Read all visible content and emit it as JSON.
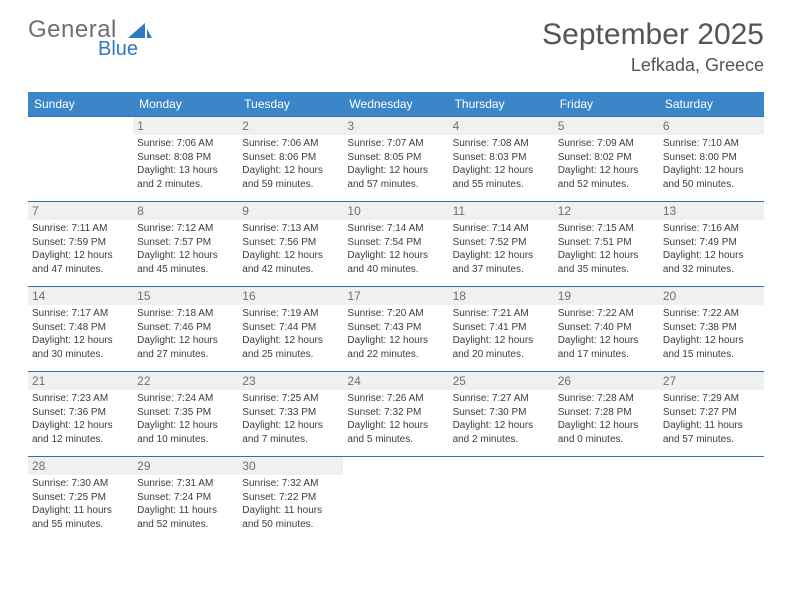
{
  "brand": {
    "word1": "General",
    "word2": "Blue"
  },
  "title": "September 2025",
  "location": "Lefkada, Greece",
  "colors": {
    "header_bg": "#3b86c8",
    "header_text": "#ffffff",
    "rule": "#3b6e9e",
    "daynum_bg": "#eef0f2",
    "daynum_text": "#707070",
    "body_text": "#3d3d3d",
    "title_text": "#555555",
    "brand_gray": "#6f6f6f",
    "brand_blue": "#2f79bd"
  },
  "day_headers": [
    "Sunday",
    "Monday",
    "Tuesday",
    "Wednesday",
    "Thursday",
    "Friday",
    "Saturday"
  ],
  "weeks": [
    [
      null,
      {
        "n": "1",
        "sr": "Sunrise: 7:06 AM",
        "ss": "Sunset: 8:08 PM",
        "dl": "Daylight: 13 hours and 2 minutes."
      },
      {
        "n": "2",
        "sr": "Sunrise: 7:06 AM",
        "ss": "Sunset: 8:06 PM",
        "dl": "Daylight: 12 hours and 59 minutes."
      },
      {
        "n": "3",
        "sr": "Sunrise: 7:07 AM",
        "ss": "Sunset: 8:05 PM",
        "dl": "Daylight: 12 hours and 57 minutes."
      },
      {
        "n": "4",
        "sr": "Sunrise: 7:08 AM",
        "ss": "Sunset: 8:03 PM",
        "dl": "Daylight: 12 hours and 55 minutes."
      },
      {
        "n": "5",
        "sr": "Sunrise: 7:09 AM",
        "ss": "Sunset: 8:02 PM",
        "dl": "Daylight: 12 hours and 52 minutes."
      },
      {
        "n": "6",
        "sr": "Sunrise: 7:10 AM",
        "ss": "Sunset: 8:00 PM",
        "dl": "Daylight: 12 hours and 50 minutes."
      }
    ],
    [
      {
        "n": "7",
        "sr": "Sunrise: 7:11 AM",
        "ss": "Sunset: 7:59 PM",
        "dl": "Daylight: 12 hours and 47 minutes."
      },
      {
        "n": "8",
        "sr": "Sunrise: 7:12 AM",
        "ss": "Sunset: 7:57 PM",
        "dl": "Daylight: 12 hours and 45 minutes."
      },
      {
        "n": "9",
        "sr": "Sunrise: 7:13 AM",
        "ss": "Sunset: 7:56 PM",
        "dl": "Daylight: 12 hours and 42 minutes."
      },
      {
        "n": "10",
        "sr": "Sunrise: 7:14 AM",
        "ss": "Sunset: 7:54 PM",
        "dl": "Daylight: 12 hours and 40 minutes."
      },
      {
        "n": "11",
        "sr": "Sunrise: 7:14 AM",
        "ss": "Sunset: 7:52 PM",
        "dl": "Daylight: 12 hours and 37 minutes."
      },
      {
        "n": "12",
        "sr": "Sunrise: 7:15 AM",
        "ss": "Sunset: 7:51 PM",
        "dl": "Daylight: 12 hours and 35 minutes."
      },
      {
        "n": "13",
        "sr": "Sunrise: 7:16 AM",
        "ss": "Sunset: 7:49 PM",
        "dl": "Daylight: 12 hours and 32 minutes."
      }
    ],
    [
      {
        "n": "14",
        "sr": "Sunrise: 7:17 AM",
        "ss": "Sunset: 7:48 PM",
        "dl": "Daylight: 12 hours and 30 minutes."
      },
      {
        "n": "15",
        "sr": "Sunrise: 7:18 AM",
        "ss": "Sunset: 7:46 PM",
        "dl": "Daylight: 12 hours and 27 minutes."
      },
      {
        "n": "16",
        "sr": "Sunrise: 7:19 AM",
        "ss": "Sunset: 7:44 PM",
        "dl": "Daylight: 12 hours and 25 minutes."
      },
      {
        "n": "17",
        "sr": "Sunrise: 7:20 AM",
        "ss": "Sunset: 7:43 PM",
        "dl": "Daylight: 12 hours and 22 minutes."
      },
      {
        "n": "18",
        "sr": "Sunrise: 7:21 AM",
        "ss": "Sunset: 7:41 PM",
        "dl": "Daylight: 12 hours and 20 minutes."
      },
      {
        "n": "19",
        "sr": "Sunrise: 7:22 AM",
        "ss": "Sunset: 7:40 PM",
        "dl": "Daylight: 12 hours and 17 minutes."
      },
      {
        "n": "20",
        "sr": "Sunrise: 7:22 AM",
        "ss": "Sunset: 7:38 PM",
        "dl": "Daylight: 12 hours and 15 minutes."
      }
    ],
    [
      {
        "n": "21",
        "sr": "Sunrise: 7:23 AM",
        "ss": "Sunset: 7:36 PM",
        "dl": "Daylight: 12 hours and 12 minutes."
      },
      {
        "n": "22",
        "sr": "Sunrise: 7:24 AM",
        "ss": "Sunset: 7:35 PM",
        "dl": "Daylight: 12 hours and 10 minutes."
      },
      {
        "n": "23",
        "sr": "Sunrise: 7:25 AM",
        "ss": "Sunset: 7:33 PM",
        "dl": "Daylight: 12 hours and 7 minutes."
      },
      {
        "n": "24",
        "sr": "Sunrise: 7:26 AM",
        "ss": "Sunset: 7:32 PM",
        "dl": "Daylight: 12 hours and 5 minutes."
      },
      {
        "n": "25",
        "sr": "Sunrise: 7:27 AM",
        "ss": "Sunset: 7:30 PM",
        "dl": "Daylight: 12 hours and 2 minutes."
      },
      {
        "n": "26",
        "sr": "Sunrise: 7:28 AM",
        "ss": "Sunset: 7:28 PM",
        "dl": "Daylight: 12 hours and 0 minutes."
      },
      {
        "n": "27",
        "sr": "Sunrise: 7:29 AM",
        "ss": "Sunset: 7:27 PM",
        "dl": "Daylight: 11 hours and 57 minutes."
      }
    ],
    [
      {
        "n": "28",
        "sr": "Sunrise: 7:30 AM",
        "ss": "Sunset: 7:25 PM",
        "dl": "Daylight: 11 hours and 55 minutes."
      },
      {
        "n": "29",
        "sr": "Sunrise: 7:31 AM",
        "ss": "Sunset: 7:24 PM",
        "dl": "Daylight: 11 hours and 52 minutes."
      },
      {
        "n": "30",
        "sr": "Sunrise: 7:32 AM",
        "ss": "Sunset: 7:22 PM",
        "dl": "Daylight: 11 hours and 50 minutes."
      },
      null,
      null,
      null,
      null
    ]
  ]
}
